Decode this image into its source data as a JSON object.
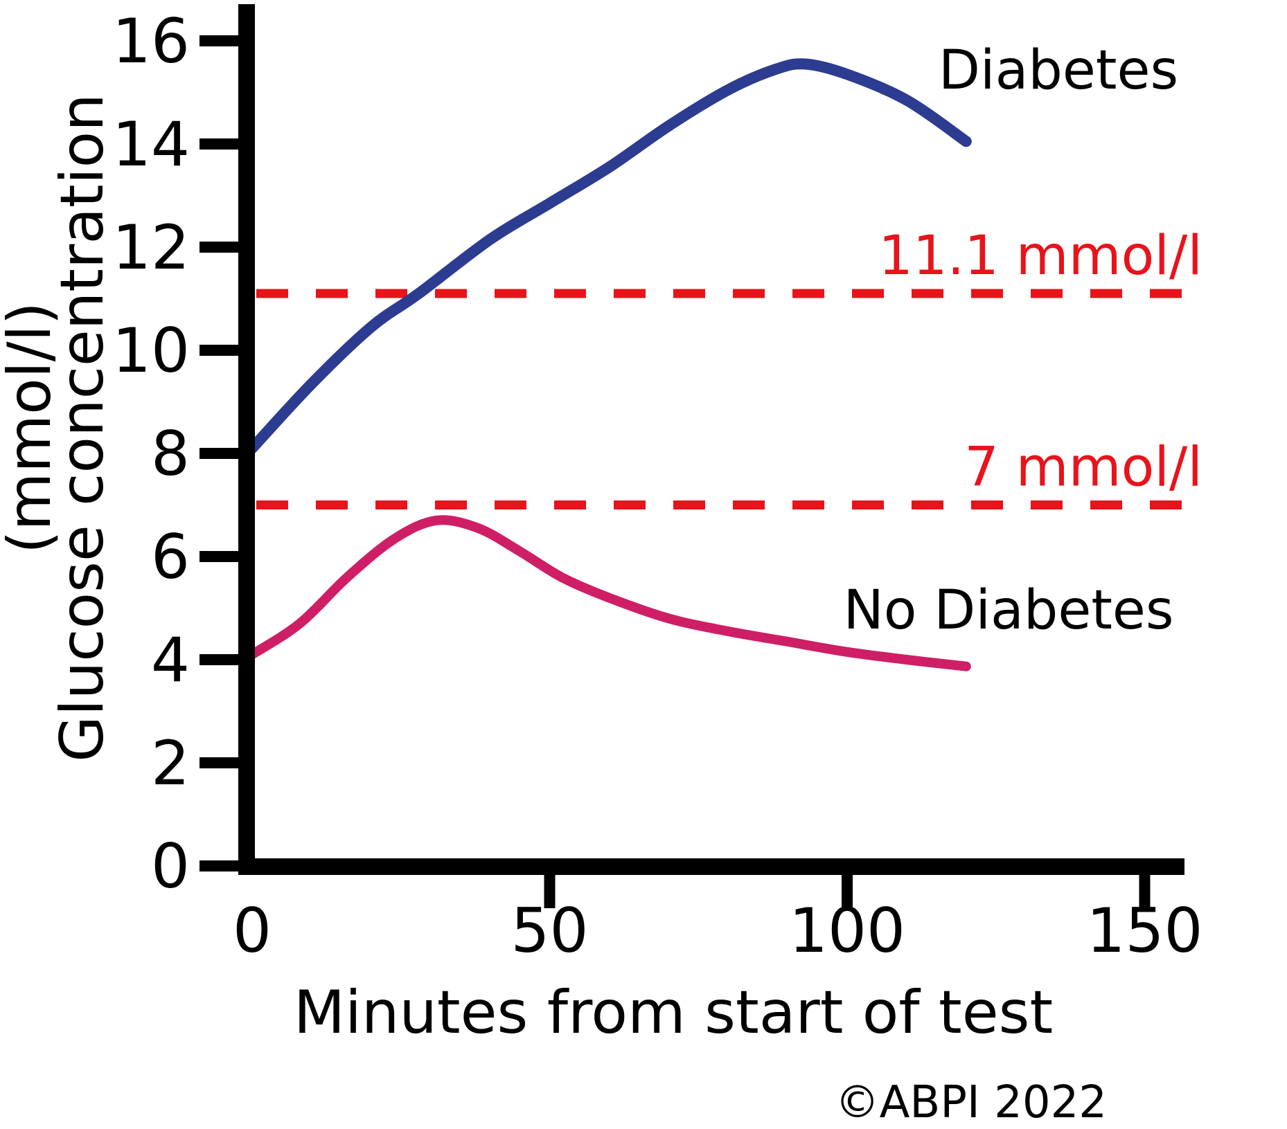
{
  "figure": {
    "copyright": "©ABPI 2022"
  },
  "chart_data": {
    "type": "line",
    "title": "",
    "xlabel": "Minutes from start of test",
    "ylabel_line1": "Glucose concentration",
    "ylabel_line2": "(mmol/l)",
    "xlim": [
      0,
      157
    ],
    "ylim": [
      0,
      16.7
    ],
    "x_ticks": [
      0,
      50,
      100,
      150
    ],
    "y_ticks": [
      0,
      2,
      4,
      6,
      8,
      10,
      12,
      14,
      16
    ],
    "grid": false,
    "legend_position": "inline-annotations",
    "axis_color": "#000000",
    "series": [
      {
        "name": "Diabetes",
        "color": "#2c3c90",
        "points": [
          [
            0,
            8.1
          ],
          [
            10,
            9.35
          ],
          [
            20,
            10.45
          ],
          [
            28,
            11.1
          ],
          [
            40,
            12.15
          ],
          [
            50,
            12.85
          ],
          [
            60,
            13.55
          ],
          [
            70,
            14.35
          ],
          [
            80,
            15.05
          ],
          [
            88,
            15.45
          ],
          [
            93,
            15.55
          ],
          [
            100,
            15.35
          ],
          [
            110,
            14.85
          ],
          [
            120,
            14.05
          ]
        ]
      },
      {
        "name": "No Diabetes",
        "color": "#ce1f66",
        "points": [
          [
            0,
            4.1
          ],
          [
            8,
            4.7
          ],
          [
            16,
            5.6
          ],
          [
            24,
            6.35
          ],
          [
            31,
            6.7
          ],
          [
            38,
            6.55
          ],
          [
            45,
            6.1
          ],
          [
            52,
            5.6
          ],
          [
            60,
            5.2
          ],
          [
            70,
            4.8
          ],
          [
            80,
            4.55
          ],
          [
            90,
            4.35
          ],
          [
            100,
            4.15
          ],
          [
            110,
            4.0
          ],
          [
            120,
            3.87
          ]
        ]
      }
    ],
    "thresholds": [
      {
        "label": "11.1 mmol/l",
        "value": 11.1,
        "color": "#e8131b"
      },
      {
        "label": "7 mmol/l",
        "value": 7,
        "color": "#e8131b"
      }
    ]
  }
}
